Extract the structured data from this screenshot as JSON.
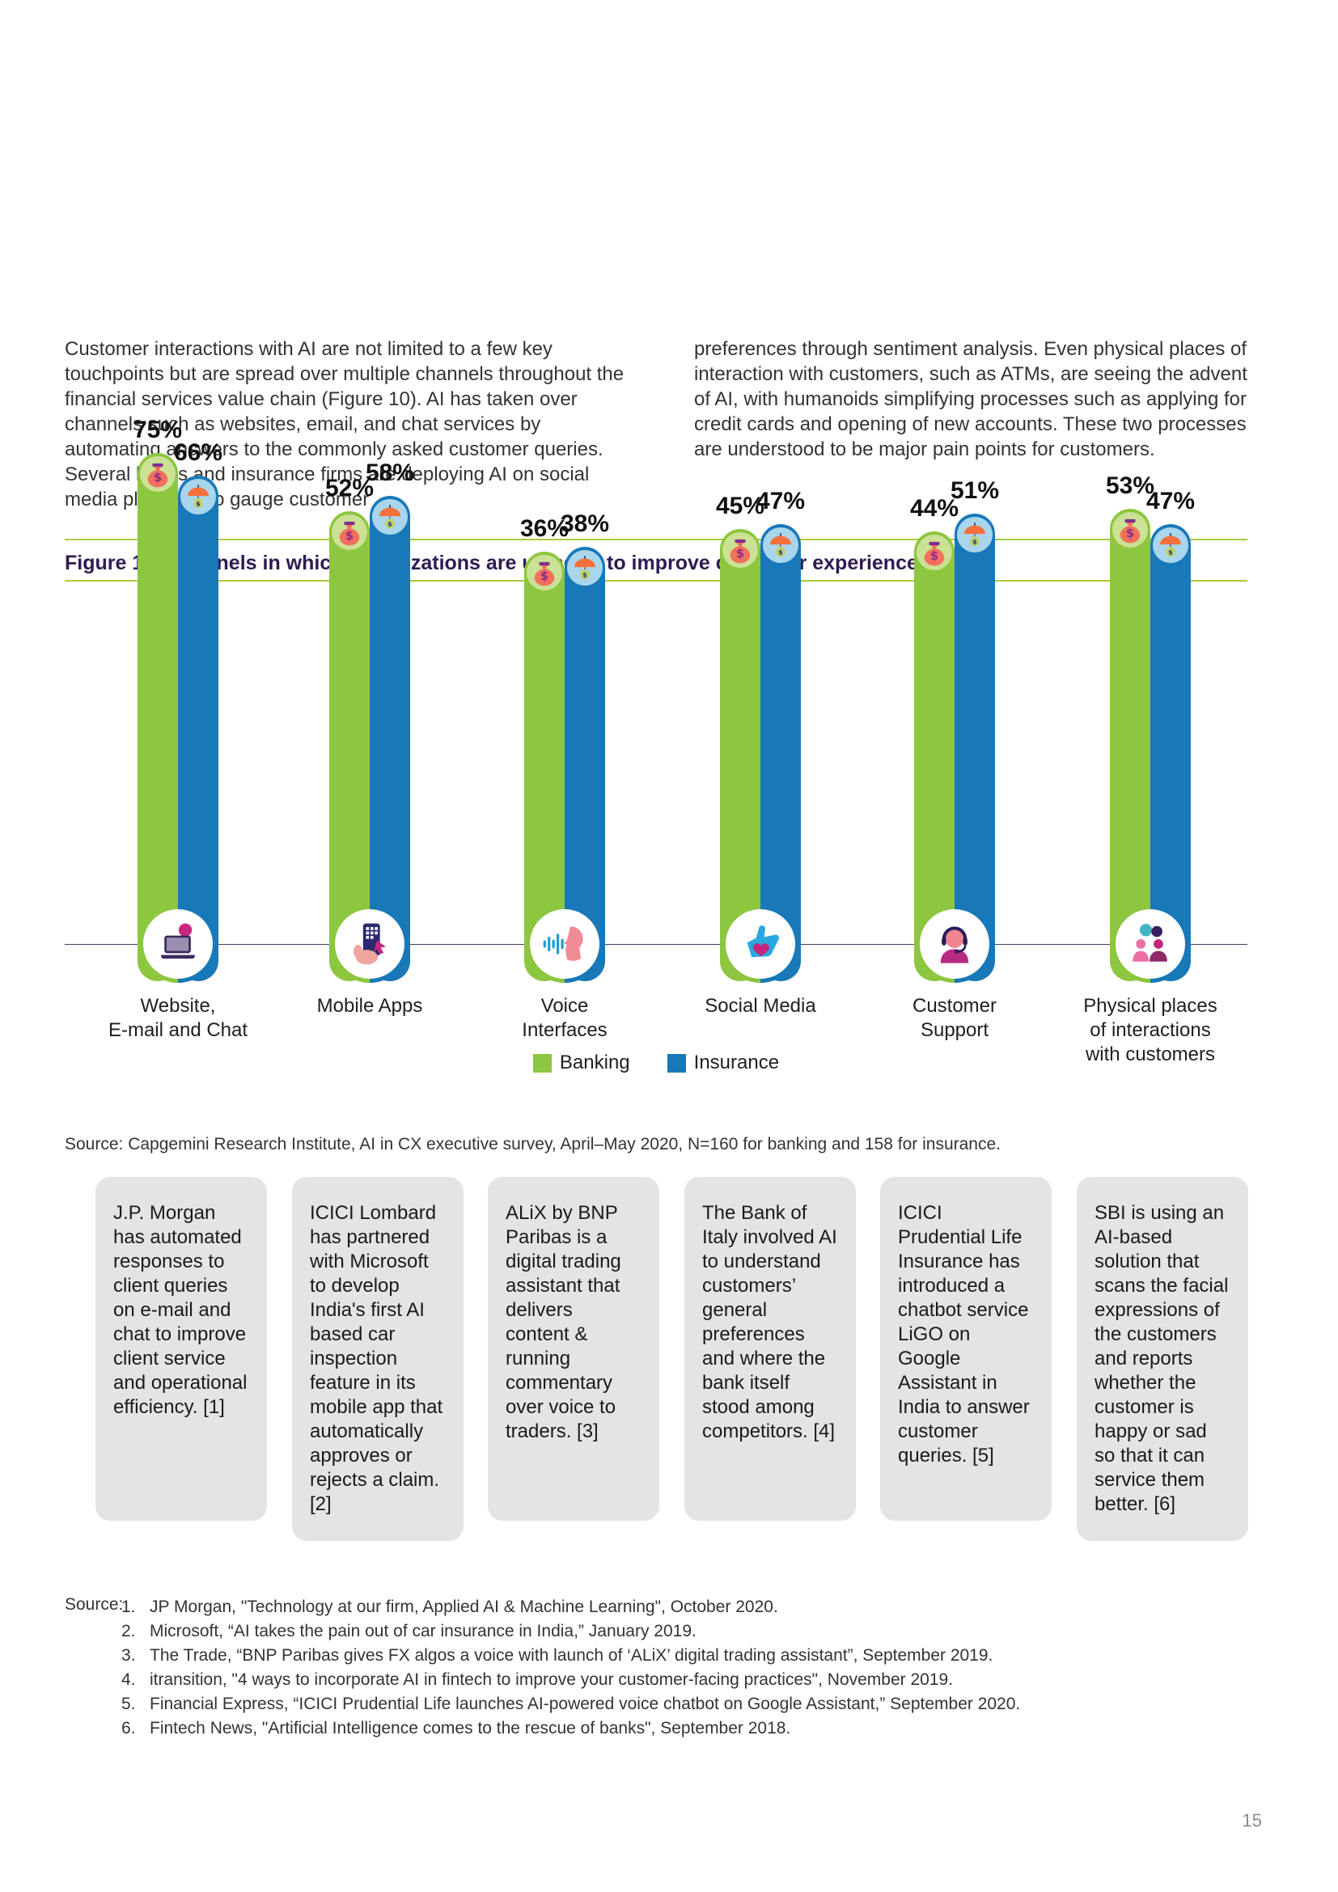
{
  "page": {
    "number": "15"
  },
  "intro": {
    "left": "Customer interactions with AI are not limited to a few key touchpoints but are spread over multiple channels throughout the financial services value chain (Figure 10). AI has taken over channels such as websites, email, and chat services by automating answers to the commonly asked customer queries. Several banks and insurance firms are deploying AI on social media platforms to gauge customer",
    "right": "preferences through sentiment analysis. Even physical places of interaction with customers, such as ATMs, are seeing the advent of AI, with humanoids simplifying processes such as applying for credit cards and opening of new accounts. These two processes are understood to be major pain points for customers."
  },
  "figure": {
    "title": "Figure 10. Channels in which organizations are using AI to improve customer experience",
    "source": "Source: Capgemini Research Institute, AI in CX executive survey, April–May 2020, N=160 for banking and 158 for insurance."
  },
  "chart_data": {
    "type": "bar",
    "title": "Channels in which organizations are using AI to improve customer experience",
    "unit": "%",
    "categories": [
      "Website,\nE-mail and Chat",
      "Mobile Apps",
      "Voice\nInterfaces",
      "Social Media",
      "Customer\nSupport",
      "Physical places\nof interactions\nwith customers"
    ],
    "series": [
      {
        "name": "Banking",
        "color": "#8dc63f",
        "values": [
          75,
          52,
          36,
          45,
          44,
          53
        ]
      },
      {
        "name": "Insurance",
        "color": "#1878b8",
        "values": [
          66,
          58,
          38,
          47,
          51,
          47
        ]
      }
    ],
    "cap_colors": {
      "banking": "#cbe194",
      "insurance": "#a9d6ec"
    },
    "bar_icons": {
      "banking": "money-bag",
      "insurance": "umbrella-dollar"
    },
    "category_icons": [
      "laptop-chat",
      "mobile-hand",
      "voice-interface",
      "thumbs-up",
      "headset-agent",
      "people-group"
    ],
    "legend_position": "bottom",
    "grid": false,
    "ylim": [
      0,
      100
    ]
  },
  "cards": [
    {
      "text": "J.P. Morgan has automated responses to client queries on e-mail and chat to improve client service and operational efficiency. [1]"
    },
    {
      "text": "ICICI Lombard has partnered with Microsoft to develop India's first AI based car inspection feature in its mobile app that automatically approves or rejects a claim. [2]"
    },
    {
      "text": "ALiX by BNP Paribas is a digital trading assistant that delivers content & running commentary over voice to traders. [3]"
    },
    {
      "text": "The Bank of Italy involved AI to understand customers’ general preferences and where the bank itself stood among competitors. [4]"
    },
    {
      "text": "ICICI Prudential Life Insurance has introduced a chatbot service LiGO on Google Assistant in India to answer customer queries. [5]"
    },
    {
      "text": "SBI is using an AI-based solution that scans the facial expressions of the customers and reports whether the customer is happy or sad so that it can service them better. [6]"
    }
  ],
  "footnotes": {
    "label": "Source:",
    "items": [
      {
        "num": "1.",
        "text": "JP Morgan, \"Technology at our firm, Applied AI & Machine Learning\", October 2020."
      },
      {
        "num": "2.",
        "text": "Microsoft, “AI takes the pain out of car insurance in India,” January 2019."
      },
      {
        "num": "3.",
        "text": "The Trade, “BNP Paribas gives FX algos a voice with launch of ‘ALiX’ digital trading assistant”, September 2019."
      },
      {
        "num": "4.",
        "text": "itransition, \"4 ways to incorporate AI in fintech to improve your customer-facing practices\", November 2019."
      },
      {
        "num": "5.",
        "text": "Financial Express, “ICICI Prudential Life launches AI-powered voice chatbot on Google Assistant,” September 2020."
      },
      {
        "num": "6.",
        "text": "Fintech News, \"Artificial Intelligence comes to the rescue of banks\", September 2018."
      }
    ]
  }
}
